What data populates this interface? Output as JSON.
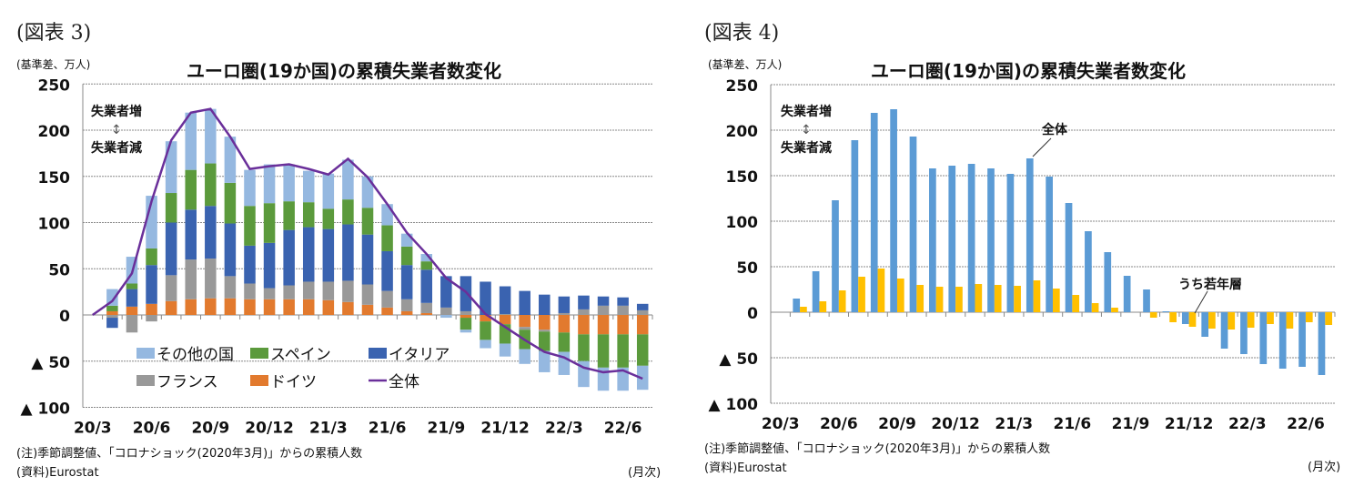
{
  "colors": {
    "other": "#95b8e0",
    "spain": "#5b9a3c",
    "italy": "#3a63b0",
    "france": "#999999",
    "germany": "#e27a2e",
    "total_line": "#6a2f9a",
    "total_bar": "#5b9bd5",
    "youth_bar": "#ffc000"
  },
  "chart_data": [
    {
      "type": "bar",
      "stacked": true,
      "figure_label": "(図表 3)",
      "title": "ユーロ圏(19か国)の累積失業者数変化",
      "ylabel": "(基準差、万人)",
      "ylim": [
        -100,
        250
      ],
      "yticks": [
        250,
        200,
        150,
        100,
        50,
        0,
        -50,
        -100
      ],
      "ytick_labels": [
        "250",
        "200",
        "150",
        "100",
        "50",
        "0",
        "▲ 50",
        "▲ 100"
      ],
      "grid": true,
      "categories": [
        "20/3",
        "20/4",
        "20/5",
        "20/6",
        "20/7",
        "20/8",
        "20/9",
        "20/10",
        "20/11",
        "20/12",
        "21/1",
        "21/2",
        "21/3",
        "21/4",
        "21/5",
        "21/6",
        "21/7",
        "21/8",
        "21/9",
        "21/10",
        "21/11",
        "21/12",
        "22/1",
        "22/2",
        "22/3",
        "22/4",
        "22/5",
        "22/6",
        "22/7"
      ],
      "xtick_labels": [
        "20/3",
        "20/6",
        "20/9",
        "20/12",
        "21/3",
        "21/6",
        "21/9",
        "21/12",
        "22/3",
        "22/6"
      ],
      "series": [
        {
          "name": "ドイツ",
          "key": "germany",
          "values": [
            0,
            4,
            9,
            12,
            15,
            17,
            18,
            18,
            17,
            17,
            17,
            17,
            16,
            14,
            11,
            8,
            4,
            2,
            0,
            -3,
            -7,
            -10,
            -13,
            -16,
            -19,
            -21,
            -21,
            -21,
            -21
          ]
        },
        {
          "name": "フランス",
          "key": "france",
          "values": [
            0,
            -3,
            -19,
            -7,
            28,
            43,
            43,
            24,
            17,
            12,
            15,
            19,
            20,
            23,
            22,
            18,
            13,
            11,
            8,
            4,
            0,
            1,
            -3,
            -2,
            2,
            6,
            10,
            10,
            5
          ]
        },
        {
          "name": "イタリア",
          "key": "italy",
          "values": [
            0,
            -11,
            19,
            42,
            57,
            54,
            57,
            57,
            41,
            49,
            60,
            59,
            57,
            61,
            54,
            43,
            37,
            36,
            34,
            38,
            36,
            30,
            26,
            22,
            18,
            15,
            10,
            9,
            7
          ]
        },
        {
          "name": "スペイン",
          "key": "spain",
          "values": [
            0,
            6,
            6,
            18,
            32,
            43,
            46,
            44,
            43,
            43,
            31,
            27,
            22,
            27,
            29,
            28,
            20,
            9,
            0,
            -13,
            -20,
            -21,
            -21,
            -21,
            -21,
            -29,
            -36,
            -36,
            -34
          ]
        },
        {
          "name": "その他の国",
          "key": "other",
          "values": [
            0,
            18,
            29,
            57,
            56,
            62,
            59,
            50,
            39,
            42,
            40,
            34,
            38,
            43,
            34,
            23,
            14,
            8,
            -3,
            -3,
            -9,
            -14,
            -16,
            -23,
            -25,
            -28,
            -25,
            -25,
            -26
          ]
        },
        {
          "name": "全体",
          "key": "total_line",
          "type": "line",
          "values": [
            0,
            15,
            45,
            123,
            189,
            219,
            223,
            193,
            158,
            161,
            163,
            158,
            152,
            169,
            149,
            120,
            89,
            66,
            40,
            25,
            1,
            -13,
            -27,
            -40,
            -46,
            -57,
            -62,
            -60,
            -69
          ]
        }
      ],
      "legend_order": [
        "その他の国",
        "スペイン",
        "イタリア",
        "フランス",
        "ドイツ",
        "全体"
      ],
      "legend_placement": "bottom-left inside",
      "annotations": {
        "up": "失業者増",
        "down": "失業者減",
        "arrow": "↕"
      },
      "note": "(注)季節調整値、「コロナショック(2020年3月)」からの累積人数",
      "source": "(資料)Eurostat",
      "xunit": "(月次)"
    },
    {
      "type": "bar",
      "figure_label": "(図表 4)",
      "title": "ユーロ圏(19か国)の累積失業者数変化",
      "ylabel": "(基準差、万人)",
      "ylim": [
        -100,
        250
      ],
      "yticks": [
        250,
        200,
        150,
        100,
        50,
        0,
        -50,
        -100
      ],
      "ytick_labels": [
        "250",
        "200",
        "150",
        "100",
        "50",
        "0",
        "▲ 50",
        "▲ 100"
      ],
      "grid": true,
      "categories": [
        "20/3",
        "20/4",
        "20/5",
        "20/6",
        "20/7",
        "20/8",
        "20/9",
        "20/10",
        "20/11",
        "20/12",
        "21/1",
        "21/2",
        "21/3",
        "21/4",
        "21/5",
        "21/6",
        "21/7",
        "21/8",
        "21/9",
        "21/10",
        "21/11",
        "21/12",
        "22/1",
        "22/2",
        "22/3",
        "22/4",
        "22/5",
        "22/6",
        "22/7"
      ],
      "xtick_labels": [
        "20/3",
        "20/6",
        "20/9",
        "20/12",
        "21/3",
        "21/6",
        "21/9",
        "21/12",
        "22/3",
        "22/6"
      ],
      "series": [
        {
          "name": "全体",
          "key": "total_bar",
          "values": [
            null,
            15,
            45,
            123,
            189,
            219,
            223,
            193,
            158,
            161,
            163,
            158,
            152,
            169,
            149,
            120,
            89,
            66,
            40,
            25,
            1,
            -13,
            -27,
            -40,
            -46,
            -57,
            -62,
            -60,
            -69
          ]
        },
        {
          "name": "うち若年層",
          "key": "youth_bar",
          "values": [
            null,
            6,
            12,
            24,
            39,
            48,
            37,
            30,
            28,
            28,
            31,
            30,
            29,
            35,
            26,
            19,
            10,
            5,
            0,
            -6,
            -11,
            -16,
            -18,
            -19,
            -17,
            -13,
            -18,
            -11,
            -14
          ]
        }
      ],
      "annotations": {
        "up": "失業者増",
        "down": "失業者減",
        "arrow": "↕",
        "total_label": "全体",
        "youth_label": "うち若年層"
      },
      "note": "(注)季節調整値、「コロナショック(2020年3月)」からの累積人数",
      "source": "(資料)Eurostat",
      "xunit": "(月次)"
    }
  ]
}
